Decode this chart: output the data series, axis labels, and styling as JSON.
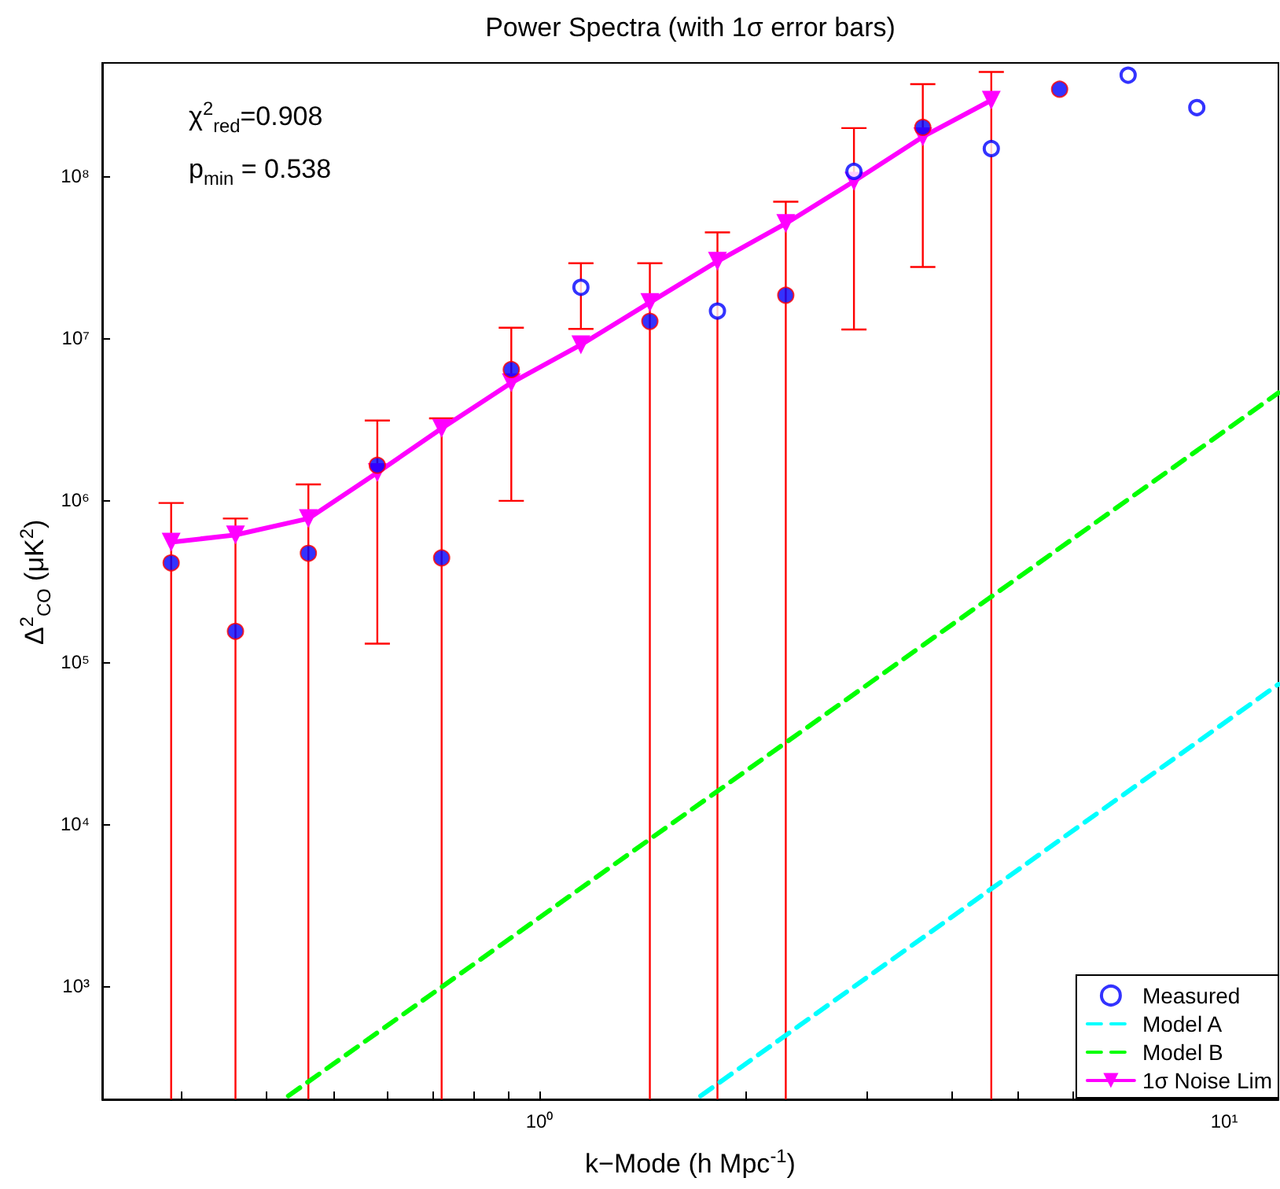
{
  "chart_data": {
    "type": "scatter",
    "title": "Power Spectra (with 1σ error bars)",
    "xlabel": "k−Mode (h Mpc$^{-1}$)",
    "ylabel": "Δ$^{2}$$_{CO}$ (μK$^{2}$)",
    "annotations": [
      "χ$^{2}$$_{red}$=0.908",
      "p$_{min}$ = 0.538"
    ],
    "x": [
      0.29,
      0.36,
      0.46,
      0.58,
      0.72,
      0.91,
      1.15,
      1.45,
      1.82,
      2.29,
      2.88,
      3.63,
      4.57,
      5.75,
      7.24,
      9.12
    ],
    "series": [
      {
        "name": "Measured",
        "color": "#0000ff",
        "marker": "circle",
        "values": [
          null,
          null,
          null,
          null,
          null,
          null,
          20600000.0,
          null,
          14700000.0,
          null,
          107000000.0,
          null,
          148000000.0,
          null,
          420000000.0,
          265000000.0
        ],
        "errors": [
          null,
          null,
          null,
          null,
          null,
          null,
          [
            11400000.0,
            29000000.0
          ],
          null,
          [
            200,
            45000000.0
          ],
          null,
          [
            11300000.0,
            198000000.0
          ],
          null,
          [
            200,
            440000000.0
          ],
          null,
          null,
          null
        ]
      },
      {
        "color": "#0000ff",
        "marker": "circle",
        "values": [
          410000.0,
          155000.0,
          470000.0,
          1640000.0,
          440000.0,
          6400000.0,
          null,
          12700000.0,
          null,
          18400000.0,
          null,
          200000000.0,
          null,
          344000000.0,
          null,
          null
        ],
        "errors": [
          [
            200,
            960000.0
          ],
          [
            200,
            770000.0
          ],
          [
            200,
            1250000.0
          ],
          [
            130000.0,
            3100000.0
          ],
          [
            200,
            3200000.0
          ],
          [
            990000.0,
            11600000.0
          ],
          null,
          [
            200,
            29000000.0
          ],
          null,
          [
            200,
            69500000.0
          ],
          null,
          [
            27500000.0,
            370000000.0
          ],
          null,
          null,
          null,
          null
        ]
      },
      {
        "name": "Model A",
        "type": "line",
        "color": "#00ffff",
        "line_style": "dashed",
        "marker": "none",
        "x": [
          1.72,
          12
        ],
        "values": [
          210,
          73000.0
        ]
      },
      {
        "name": "Model B",
        "type": "line",
        "color": "#00ff00",
        "line_style": "dashed",
        "marker": "none",
        "x": [
          0.43,
          12
        ],
        "values": [
          210,
          4600000.0
        ]
      },
      {
        "name": "1σ Noise Lim",
        "type": "line",
        "color": "#ff00ff",
        "line_style": "solid",
        "marker": "triangle",
        "values": [
          550000.0,
          610000.0,
          770000.0,
          1480000.0,
          2770000.0,
          5300000.0,
          9100000.0,
          16600000.0,
          29800000.0,
          51000000.0,
          93000000.0,
          175000000.0,
          294000000.0,
          null,
          null,
          null
        ]
      }
    ],
    "log": "xy",
    "xlim": [
      0.23,
      12
    ],
    "ylim": [
      200,
      500000000.0
    ],
    "xticks": [
      {
        "value": 0.3,
        "label": null
      },
      {
        "value": 0.4,
        "label": null
      },
      {
        "value": 0.5,
        "label": null
      },
      {
        "value": 0.6,
        "label": null
      },
      {
        "value": 0.7,
        "label": null
      },
      {
        "value": 0.8,
        "label": null
      },
      {
        "value": 0.9,
        "label": null
      },
      {
        "value": 1,
        "label": "10⁰"
      },
      {
        "value": 2,
        "label": null
      },
      {
        "value": 3,
        "label": null
      },
      {
        "value": 4,
        "label": null
      },
      {
        "value": 5,
        "label": null
      },
      {
        "value": 6,
        "label": null
      },
      {
        "value": 7,
        "label": null
      },
      {
        "value": 8,
        "label": null
      },
      {
        "value": 9,
        "label": null
      },
      {
        "value": 10,
        "label": "10¹"
      }
    ],
    "yticks": [
      {
        "value": 1000,
        "label": "10³"
      },
      {
        "value": 10000,
        "label": "10⁴"
      },
      {
        "value": 100000,
        "label": "10⁵"
      },
      {
        "value": 1000000,
        "label": "10⁶"
      },
      {
        "value": 10000000,
        "label": "10⁷"
      },
      {
        "value": 100000000,
        "label": "10⁸"
      }
    ],
    "grid": false,
    "legend": "bottom right"
  }
}
